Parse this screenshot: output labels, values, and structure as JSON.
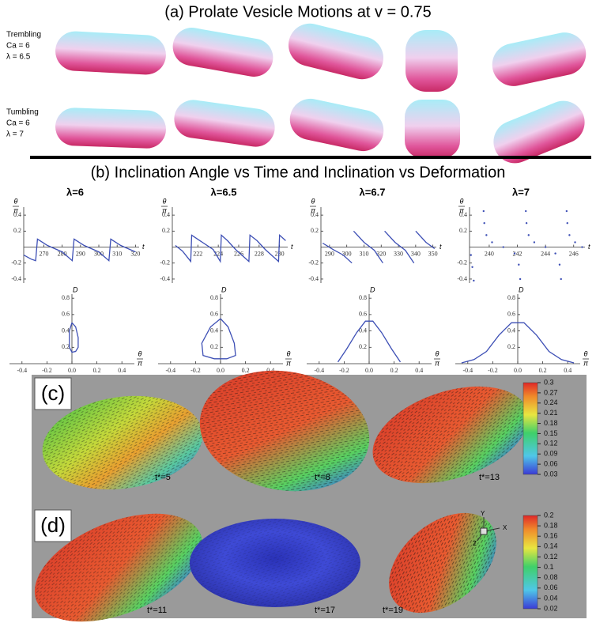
{
  "panel_a": {
    "title": "(a) Prolate Vesicle Motions at v = 0.75",
    "rows": [
      {
        "lines": [
          "Trembling",
          "Ca = 6",
          "λ = 6.5"
        ]
      },
      {
        "lines": [
          "Tumbling",
          "Ca = 6",
          "λ = 7"
        ]
      }
    ]
  },
  "panel_b": {
    "title": "(b) Inclination Angle vs Time and Inclination vs Deformation",
    "theta_symbol": "θ",
    "pi_symbol": "π",
    "time_symbol": "t",
    "deformation_symbol": "D",
    "plots": [
      {
        "label": "λ=6",
        "angle": {
          "type": "line",
          "color": "#3d4fb5",
          "xlim": [
            259,
            322
          ],
          "ylim": [
            -0.45,
            0.5
          ],
          "xticks": [
            270,
            280,
            290,
            300,
            310,
            320
          ],
          "yticks": [
            -0.4,
            -0.2,
            0.2,
            0.4
          ],
          "x": [
            259,
            263,
            265.5,
            266.5,
            272,
            280,
            285.5,
            286.5,
            292,
            300,
            305.5,
            306.5,
            312,
            320
          ],
          "values": [
            -0.1,
            -0.15,
            -0.17,
            0.1,
            0.02,
            -0.06,
            -0.17,
            0.1,
            0.02,
            -0.06,
            -0.17,
            0.1,
            0.02,
            -0.06
          ]
        },
        "deformation": {
          "type": "line",
          "color": "#3d4fb5",
          "xlim": [
            -0.5,
            0.5
          ],
          "ylim": [
            0,
            0.85
          ],
          "xticks": [
            -0.4,
            -0.2,
            {
              "value": 0,
              "label": "0.0"
            },
            0.2,
            0.4
          ],
          "yticks": [
            0.2,
            0.4,
            0.6,
            0.8
          ],
          "x": [
            0.0,
            0.03,
            0.05,
            0.05,
            0.03,
            0.0,
            -0.02,
            -0.02,
            0.0
          ],
          "values": [
            0.5,
            0.45,
            0.32,
            0.2,
            0.15,
            0.14,
            0.2,
            0.4,
            0.5
          ]
        }
      },
      {
        "label": "λ=6.5",
        "angle": {
          "type": "line",
          "color": "#3d4fb5",
          "xlim": [
            219.5,
            230.8
          ],
          "ylim": [
            -0.45,
            0.5
          ],
          "xticks": [
            222,
            224,
            226,
            228,
            230
          ],
          "yticks": [
            -0.4,
            -0.2,
            0.2,
            0.4
          ],
          "x": [
            219.8,
            220.5,
            221.3,
            221.4,
            222.2,
            223.5,
            224.2,
            224.3,
            224.9,
            225.7,
            227.0,
            227.1,
            227.8,
            228.6,
            229.9,
            230.0,
            230.6
          ],
          "values": [
            0.02,
            -0.05,
            -0.18,
            0.15,
            0.08,
            -0.03,
            -0.18,
            0.15,
            0.08,
            -0.03,
            -0.18,
            0.15,
            0.08,
            -0.03,
            -0.18,
            0.15,
            0.08
          ]
        },
        "deformation": {
          "type": "line",
          "color": "#3d4fb5",
          "xlim": [
            -0.5,
            0.5
          ],
          "ylim": [
            0,
            0.85
          ],
          "xticks": [
            -0.4,
            -0.2,
            {
              "value": 0,
              "label": "0.0"
            },
            0.2,
            0.4
          ],
          "yticks": [
            0.2,
            0.4,
            0.6,
            0.8
          ],
          "x": [
            0.0,
            0.06,
            0.11,
            0.12,
            0.05,
            -0.05,
            -0.14,
            -0.15,
            -0.08,
            0.0
          ],
          "values": [
            0.55,
            0.45,
            0.25,
            0.1,
            0.06,
            0.06,
            0.1,
            0.25,
            0.45,
            0.55
          ]
        }
      },
      {
        "label": "λ=6.7",
        "angle": {
          "type": "line",
          "color": "#3d4fb5",
          "xlim": [
            285,
            352
          ],
          "ylim": [
            -0.45,
            0.5
          ],
          "xticks": [
            290,
            300,
            310,
            320,
            330,
            340,
            350
          ],
          "yticks": [
            -0.4,
            -0.2,
            0.2,
            0.4
          ],
          "x": [
            286,
            292,
            298,
            303,
            303,
            304,
            310,
            316,
            321,
            321,
            322,
            328,
            334,
            339,
            339,
            340,
            346,
            351
          ],
          "values": [
            0.05,
            -0.03,
            -0.1,
            -0.2,
            null,
            0.2,
            0.06,
            -0.04,
            -0.2,
            null,
            0.2,
            0.06,
            -0.04,
            -0.2,
            null,
            0.2,
            0.06,
            -0.02
          ]
        },
        "deformation": {
          "type": "line",
          "color": "#3d4fb5",
          "xlim": [
            -0.5,
            0.5
          ],
          "ylim": [
            0,
            0.85
          ],
          "xticks": [
            -0.4,
            -0.2,
            {
              "value": 0,
              "label": "0.0"
            },
            0.2,
            0.4
          ],
          "yticks": [
            0.2,
            0.4,
            0.6,
            0.8
          ],
          "x": [
            -0.25,
            -0.18,
            -0.1,
            -0.03,
            0.03,
            0.1,
            0.18,
            0.25
          ],
          "values": [
            0.02,
            0.18,
            0.38,
            0.52,
            0.52,
            0.38,
            0.18,
            0.02
          ]
        }
      },
      {
        "label": "λ=7",
        "angle": {
          "type": "scatter",
          "color": "#3d4fb5",
          "xlim": [
            238.6,
            246.8
          ],
          "ylim": [
            -0.45,
            0.5
          ],
          "xticks": [
            240,
            242,
            244,
            246
          ],
          "yticks": [
            -0.4,
            -0.2,
            0.2,
            0.4
          ],
          "x": [
            238.7,
            238.8,
            238.9,
            239.6,
            239.65,
            239.8,
            240.2,
            241.0,
            241.8,
            242.1,
            242.2,
            242.6,
            242.65,
            242.8,
            243.2,
            244.0,
            244.7,
            245.0,
            245.1,
            245.5,
            245.55,
            245.7,
            246.1,
            246.6
          ],
          "values": [
            -0.1,
            -0.25,
            -0.42,
            0.45,
            0.3,
            0.15,
            0.06,
            0.0,
            -0.08,
            -0.22,
            -0.4,
            0.45,
            0.3,
            0.15,
            0.06,
            0.0,
            -0.08,
            -0.22,
            -0.4,
            0.45,
            0.3,
            0.15,
            0.06,
            0.0
          ]
        },
        "deformation": {
          "type": "line",
          "color": "#3d4fb5",
          "xlim": [
            -0.5,
            0.5
          ],
          "ylim": [
            0,
            0.85
          ],
          "xticks": [
            -0.4,
            -0.2,
            {
              "value": 0,
              "label": "0.0"
            },
            0.2,
            0.4
          ],
          "yticks": [
            0.2,
            0.4,
            0.6,
            0.8
          ],
          "x": [
            -0.45,
            -0.35,
            -0.25,
            -0.15,
            -0.05,
            0.05,
            0.15,
            0.25,
            0.35,
            0.45
          ],
          "values": [
            0.01,
            0.05,
            0.15,
            0.35,
            0.5,
            0.5,
            0.35,
            0.15,
            0.05,
            0.01
          ]
        }
      }
    ]
  },
  "panel_c": {
    "label": "(c)",
    "times": [
      "t*=5",
      "t*=8",
      "t*=13"
    ],
    "colorbar_ticks": [
      0.3,
      0.27,
      0.24,
      0.21,
      0.18,
      0.15,
      0.12,
      0.09,
      0.06,
      0.03
    ]
  },
  "panel_d": {
    "label": "(d)",
    "times": [
      "t*=11",
      "t*=17",
      "t*=19"
    ],
    "colorbar_ticks": [
      0.2,
      0.18,
      0.16,
      0.14,
      0.12,
      0.1,
      0.08,
      0.06,
      0.04,
      0.02
    ],
    "axes": [
      "Y",
      "X",
      "Z"
    ]
  }
}
